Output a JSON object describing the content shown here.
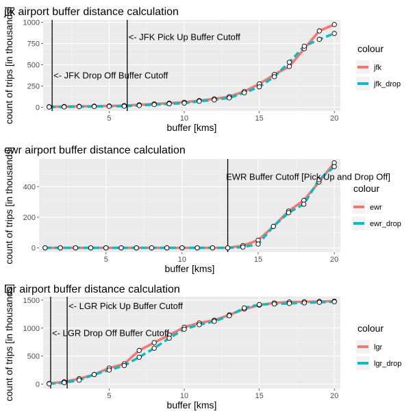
{
  "chart_data": [
    {
      "type": "line",
      "title": "jfk airport buffer distance calculation",
      "xlabel": "buffer [kms]",
      "ylabel": "count of trips [in thousands]",
      "xlim": [
        0.6,
        20.4
      ],
      "ylim": [
        -45,
        1030
      ],
      "xticks": [
        5,
        10,
        15,
        20
      ],
      "yticks": [
        0,
        250,
        500,
        750,
        1000
      ],
      "grid": true,
      "legend": {
        "title": "colour",
        "placement": "right"
      },
      "series": [
        {
          "name": "jfk",
          "color": "#F8766D",
          "x": [
            1,
            2,
            3,
            4,
            5,
            6,
            7,
            8,
            9,
            10,
            11,
            12,
            13,
            14,
            15,
            16,
            17,
            18,
            19,
            20
          ],
          "y": [
            5,
            8,
            10,
            12,
            14,
            18,
            28,
            38,
            48,
            58,
            78,
            98,
            125,
            185,
            275,
            385,
            480,
            690,
            900,
            975
          ]
        },
        {
          "name": "jfk_drop",
          "color": "#00BFC4",
          "x": [
            1,
            2,
            3,
            4,
            5,
            6,
            7,
            8,
            9,
            10,
            11,
            12,
            13,
            14,
            15,
            16,
            17,
            18,
            19,
            20
          ],
          "y": [
            2,
            4,
            6,
            8,
            10,
            12,
            20,
            30,
            40,
            48,
            70,
            86,
            110,
            170,
            240,
            360,
            530,
            720,
            800,
            870
          ]
        }
      ],
      "vlines": [
        1.2,
        6.2
      ],
      "annotations": [
        {
          "text": "<- JFK Pick Up Buffer Cutoff",
          "x": 6.2,
          "y": 830
        },
        {
          "text": "<- JFK Drop Off Buffer Cutoff",
          "x": 1.2,
          "y": 380
        }
      ]
    },
    {
      "type": "line",
      "title": "ewr airport buffer distance calculation",
      "xlabel": "buffer [kms]",
      "ylabel": "count of trips [in thousands]",
      "xlim": [
        0.6,
        20.4
      ],
      "ylim": [
        -28,
        580
      ],
      "xticks": [
        5,
        10,
        15,
        20
      ],
      "yticks": [
        0,
        200,
        400
      ],
      "grid": true,
      "legend": {
        "title": "colour",
        "placement": "right"
      },
      "series": [
        {
          "name": "ewr",
          "color": "#F8766D",
          "x": [
            1,
            2,
            3,
            4,
            5,
            6,
            7,
            8,
            9,
            10,
            11,
            12,
            13,
            14,
            15,
            16,
            17,
            18,
            19,
            20
          ],
          "y": [
            0,
            0,
            0,
            0,
            0,
            0,
            0,
            0,
            0,
            0,
            0,
            0,
            0,
            15,
            50,
            140,
            240,
            310,
            430,
            555
          ]
        },
        {
          "name": "ewr_drop",
          "color": "#00BFC4",
          "x": [
            1,
            2,
            3,
            4,
            5,
            6,
            7,
            8,
            9,
            10,
            11,
            12,
            13,
            14,
            15,
            16,
            17,
            18,
            19,
            20
          ],
          "y": [
            0,
            0,
            0,
            0,
            0,
            0,
            0,
            0,
            0,
            0,
            0,
            0,
            0,
            5,
            25,
            140,
            230,
            285,
            445,
            530
          ]
        }
      ],
      "vlines": [
        13
      ],
      "annotations": [
        {
          "text": "EWR Buffer Cutoff [Pick Up and Drop Off]",
          "x": 12.8,
          "y": 465
        }
      ]
    },
    {
      "type": "line",
      "title": "lgr airport buffer distance calculation",
      "xlabel": "buffer [kms]",
      "ylabel": "count of trips [in thousands]",
      "xlim": [
        0.6,
        20.4
      ],
      "ylim": [
        -80,
        1560
      ],
      "xticks": [
        5,
        10,
        15,
        20
      ],
      "yticks": [
        0,
        500,
        1000,
        1500
      ],
      "grid": true,
      "legend": {
        "title": "colour",
        "placement": "right"
      },
      "series": [
        {
          "name": "lgr",
          "color": "#F8766D",
          "x": [
            1,
            2,
            3,
            4,
            5,
            6,
            7,
            8,
            9,
            10,
            11,
            12,
            13,
            14,
            15,
            16,
            17,
            18,
            19,
            20
          ],
          "y": [
            10,
            40,
            95,
            170,
            285,
            360,
            600,
            740,
            875,
            1015,
            1090,
            1140,
            1235,
            1340,
            1410,
            1450,
            1465,
            1470,
            1475,
            1480
          ]
        },
        {
          "name": "lgr_drop",
          "color": "#00BFC4",
          "x": [
            1,
            2,
            3,
            4,
            5,
            6,
            7,
            8,
            9,
            10,
            11,
            12,
            13,
            14,
            15,
            16,
            17,
            18,
            19,
            20
          ],
          "y": [
            5,
            25,
            70,
            170,
            250,
            330,
            480,
            640,
            820,
            980,
            1060,
            1120,
            1220,
            1360,
            1420,
            1430,
            1440,
            1450,
            1460,
            1470
          ]
        }
      ],
      "vlines": [
        1.1,
        2.2
      ],
      "annotations": [
        {
          "text": "<- LGR Pick Up Buffer Cutoff",
          "x": 2.2,
          "y": 1400
        },
        {
          "text": "<- LGR Drop Off Buffer Cutoff",
          "x": 1.1,
          "y": 920
        }
      ]
    }
  ]
}
